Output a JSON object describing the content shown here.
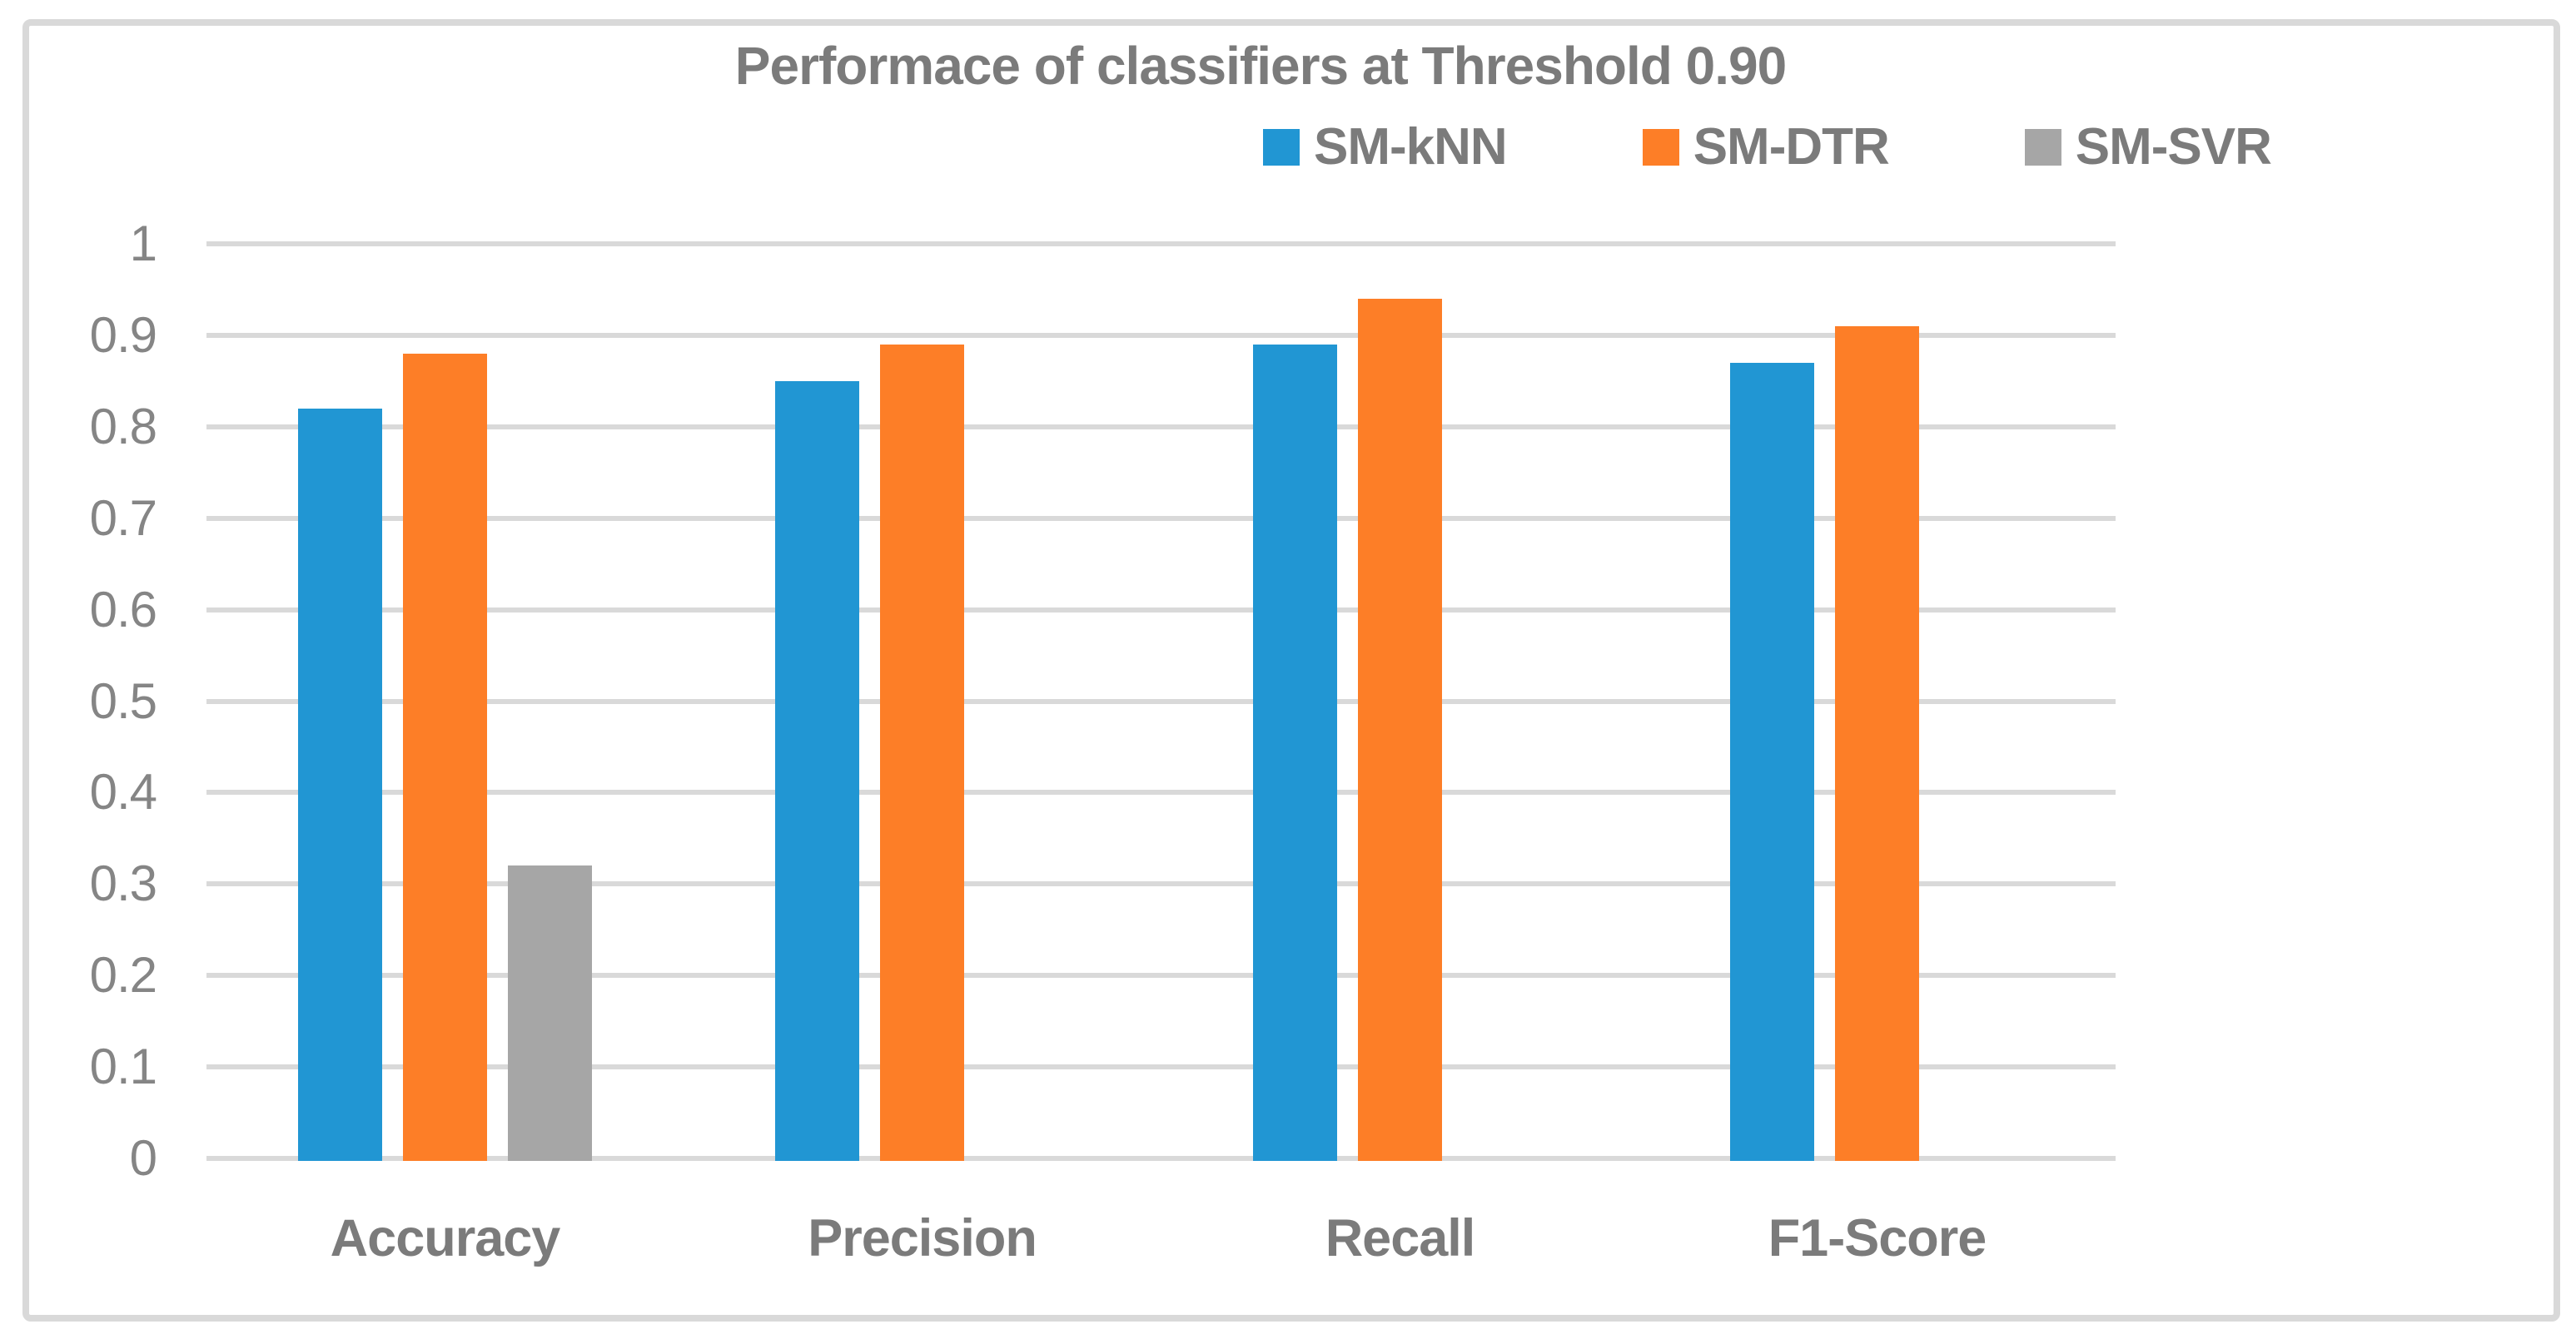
{
  "chart_data": {
    "type": "bar",
    "title": "Performace of classifiers at Threshold 0.90",
    "categories": [
      "Accuracy",
      "Precision",
      "Recall",
      "F1-Score"
    ],
    "series": [
      {
        "name": "SM-kNN",
        "color": "#2196d3",
        "values": [
          0.82,
          0.85,
          0.89,
          0.87
        ]
      },
      {
        "name": "SM-DTR",
        "color": "#fd7e27",
        "values": [
          0.88,
          0.89,
          0.94,
          0.91
        ]
      },
      {
        "name": "SM-SVR",
        "color": "#a6a6a6",
        "values": [
          0.32,
          0,
          0,
          0
        ]
      }
    ],
    "ylim": [
      0,
      1
    ],
    "yticks": [
      0,
      0.1,
      0.2,
      0.3,
      0.4,
      0.5,
      0.6,
      0.7,
      0.8,
      0.9,
      1
    ],
    "ytick_labels": [
      "0",
      "0.1",
      "0.2",
      "0.3",
      "0.4",
      "0.5",
      "0.6",
      "0.7",
      "0.8",
      "0.9",
      "1"
    ],
    "grid": true,
    "legend_position": "top-right",
    "colors": {
      "grid": "#d9d9d9",
      "frame_border": "#d9d9d9",
      "title_text": "#7b7b7b",
      "axis_text": "#858585",
      "background": "#ffffff"
    }
  }
}
